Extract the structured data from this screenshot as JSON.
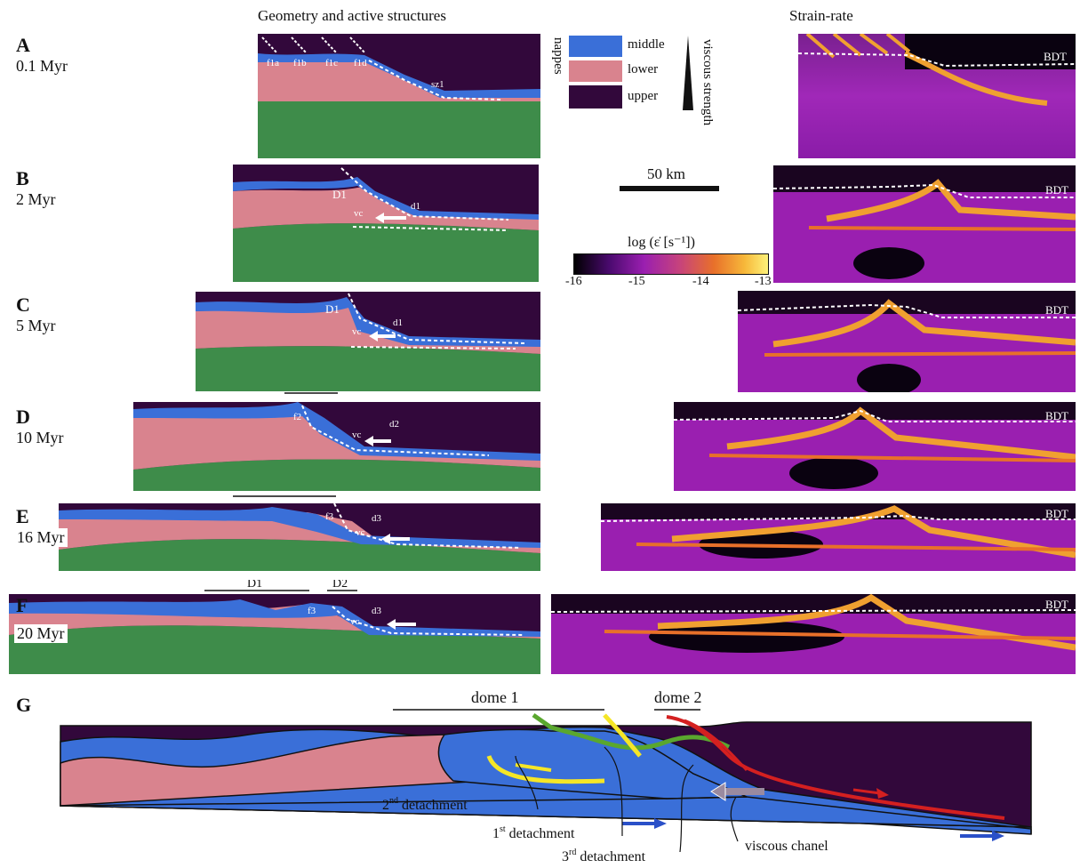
{
  "headers": {
    "geometry": "Geometry and active structures",
    "strain": "Strain-rate"
  },
  "panels": [
    {
      "label": "A",
      "time": "0.1 Myr"
    },
    {
      "label": "B",
      "time": "2 Myr"
    },
    {
      "label": "C",
      "time": "5 Myr"
    },
    {
      "label": "D",
      "time": "10 Myr"
    },
    {
      "label": "E",
      "time": "16 Myr"
    },
    {
      "label": "F",
      "time": "20 Myr"
    },
    {
      "label": "G",
      "time": ""
    }
  ],
  "legend": {
    "title": "nappes",
    "items": [
      {
        "label": "middle",
        "color": "#3a6fd8"
      },
      {
        "label": "lower",
        "color": "#d9838e"
      },
      {
        "label": "upper",
        "color": "#32083b"
      }
    ],
    "strength": "viscous strength"
  },
  "scale_bar": "50 km",
  "colorbar": {
    "title": "log (ε̇ [s⁻¹])",
    "ticks": [
      "-16",
      "-15",
      "-14",
      "-13"
    ]
  },
  "structure_labels": {
    "fa": "f1a",
    "fb": "f1b",
    "fc": "f1c",
    "fd": "f1d",
    "sz": "sz1",
    "D1": "D1",
    "D2": "D2",
    "d1": "d1",
    "d2": "d2",
    "d3": "d3",
    "vc": "vc",
    "f2": "f2",
    "f3": "f3",
    "bdt": "BDT"
  },
  "panel_g": {
    "dome1": "dome 1",
    "dome2": "dome 2",
    "det2": "2",
    "det2_sup": "nd",
    "det2_rest": " detachment",
    "det1": "1",
    "det1_sup": "st",
    "det1_rest": "  detachment",
    "det3": "3",
    "det3_sup": "rd",
    "det3_rest": " detachment",
    "viscous": "viscous chanel"
  },
  "colors": {
    "crust_lower": "#d9838e",
    "crust_middle": "#3a6fd8",
    "upper": "#32083b",
    "mantle": "#3e8c4a",
    "strain_bg": "#9a1fb0",
    "hot": "#f0a030"
  }
}
